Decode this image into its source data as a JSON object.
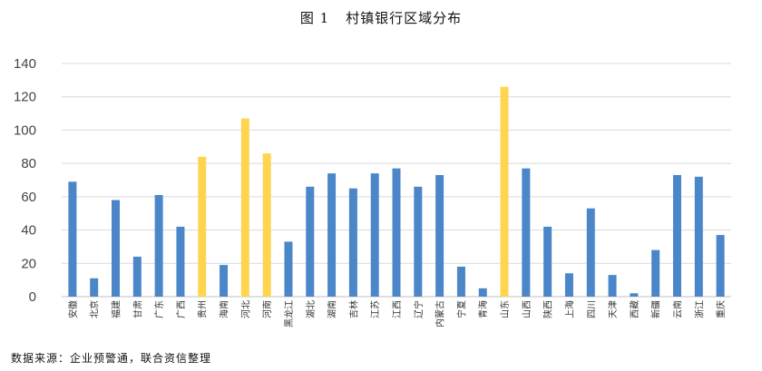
{
  "figure": {
    "label": "图 1",
    "title": "村镇银行区域分布",
    "source": "数据来源：企业预警通，联合资信整理"
  },
  "chart_data": {
    "type": "bar",
    "title": "村镇银行区域分布",
    "xlabel": "",
    "ylabel": "",
    "ylim": [
      0,
      140
    ],
    "yticks": [
      0,
      20,
      40,
      60,
      80,
      100,
      120,
      140
    ],
    "grid": true,
    "categories": [
      "安徽",
      "北京",
      "福建",
      "甘肃",
      "广东",
      "广西",
      "贵州",
      "海南",
      "河北",
      "河南",
      "黑龙江",
      "湖北",
      "湖南",
      "吉林",
      "江苏",
      "江西",
      "辽宁",
      "内蒙古",
      "宁夏",
      "青海",
      "山东",
      "山西",
      "陕西",
      "上海",
      "四川",
      "天津",
      "西藏",
      "新疆",
      "云南",
      "浙江",
      "重庆"
    ],
    "values": [
      69,
      11,
      58,
      24,
      61,
      42,
      84,
      19,
      107,
      86,
      33,
      66,
      74,
      65,
      74,
      77,
      66,
      73,
      18,
      5,
      126,
      77,
      42,
      14,
      53,
      13,
      2,
      28,
      73,
      72,
      37
    ],
    "colors": {
      "default": "#4a86c8",
      "highlight": "#ffd54f"
    },
    "highlighted": [
      "贵州",
      "河北",
      "河南",
      "山东"
    ]
  }
}
